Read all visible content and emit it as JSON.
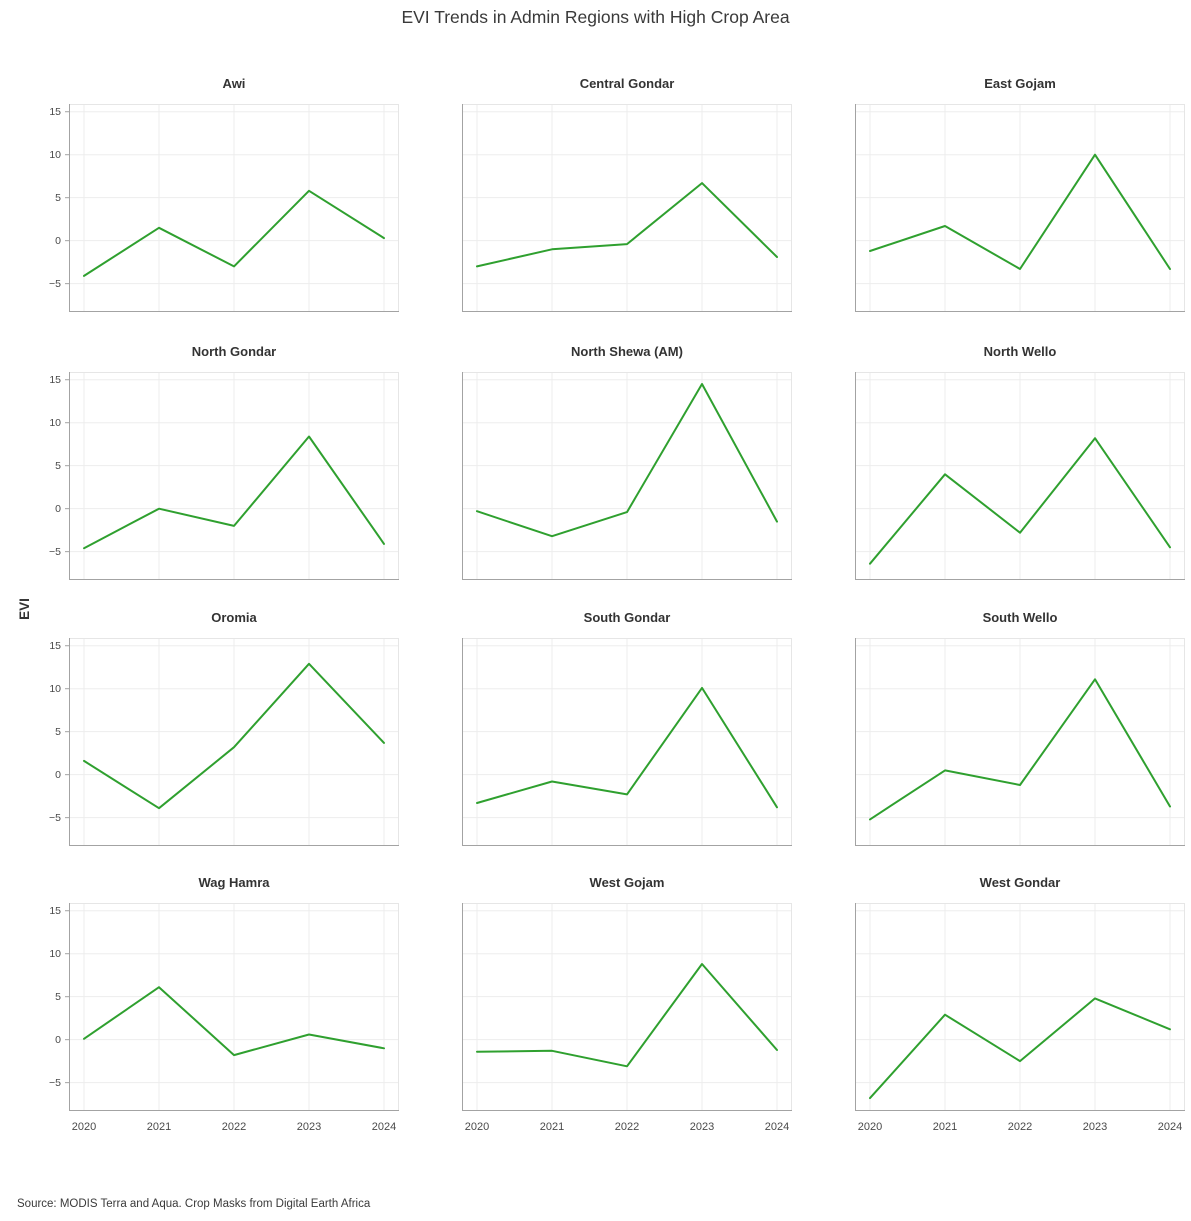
{
  "page": {
    "title": "EVI Trends in Admin Regions with High Crop Area",
    "ylabel": "EVI",
    "source": "Source: MODIS Terra and Aqua. Crop Masks from Digital Earth Africa"
  },
  "chart_data": {
    "type": "line",
    "title": "EVI Trends in Admin Regions with High Crop Area",
    "xlabel": "",
    "ylabel": "EVI",
    "x": [
      2020,
      2021,
      2022,
      2023,
      2024
    ],
    "x_tick_labels": [
      "2020",
      "2021",
      "2022",
      "2023",
      "2024"
    ],
    "y_ticks": [
      15,
      10,
      5,
      0,
      -5
    ],
    "y_tick_labels": [
      "15",
      "10",
      "5",
      "0",
      "−5"
    ],
    "ylim": [
      -8.3,
      15.9
    ],
    "grid": true,
    "legend": "none",
    "line_color": "#2fa02f",
    "layout": {
      "rows": 4,
      "cols": 3,
      "shared_x": true,
      "shared_y": true
    },
    "series": [
      {
        "name": "Awi",
        "values": [
          -4.1,
          1.5,
          -3.0,
          5.8,
          0.3
        ]
      },
      {
        "name": "Central Gondar",
        "values": [
          -3.0,
          -1.0,
          -0.4,
          6.7,
          -1.9
        ]
      },
      {
        "name": "East Gojam",
        "values": [
          -1.2,
          1.7,
          -3.3,
          10.0,
          -3.3
        ]
      },
      {
        "name": "North Gondar",
        "values": [
          -4.6,
          0.0,
          -2.0,
          8.4,
          -4.1
        ]
      },
      {
        "name": "North Shewa (AM)",
        "values": [
          -0.3,
          -3.2,
          -0.4,
          14.5,
          -1.5
        ]
      },
      {
        "name": "North Wello",
        "values": [
          -6.4,
          4.0,
          -2.8,
          8.2,
          -4.5
        ]
      },
      {
        "name": "Oromia",
        "values": [
          1.6,
          -3.9,
          3.2,
          12.9,
          3.7
        ]
      },
      {
        "name": "South Gondar",
        "values": [
          -3.3,
          -0.8,
          -2.3,
          10.1,
          -3.8
        ]
      },
      {
        "name": "South Wello",
        "values": [
          -5.2,
          0.5,
          -1.2,
          11.1,
          -3.7
        ]
      },
      {
        "name": "Wag Hamra",
        "values": [
          0.1,
          6.1,
          -1.8,
          0.6,
          -1.0
        ]
      },
      {
        "name": "West Gojam",
        "values": [
          -1.4,
          -1.3,
          -3.1,
          8.8,
          -1.2
        ]
      },
      {
        "name": "West Gondar",
        "values": [
          -6.8,
          2.9,
          -2.5,
          4.8,
          1.2
        ]
      }
    ]
  }
}
